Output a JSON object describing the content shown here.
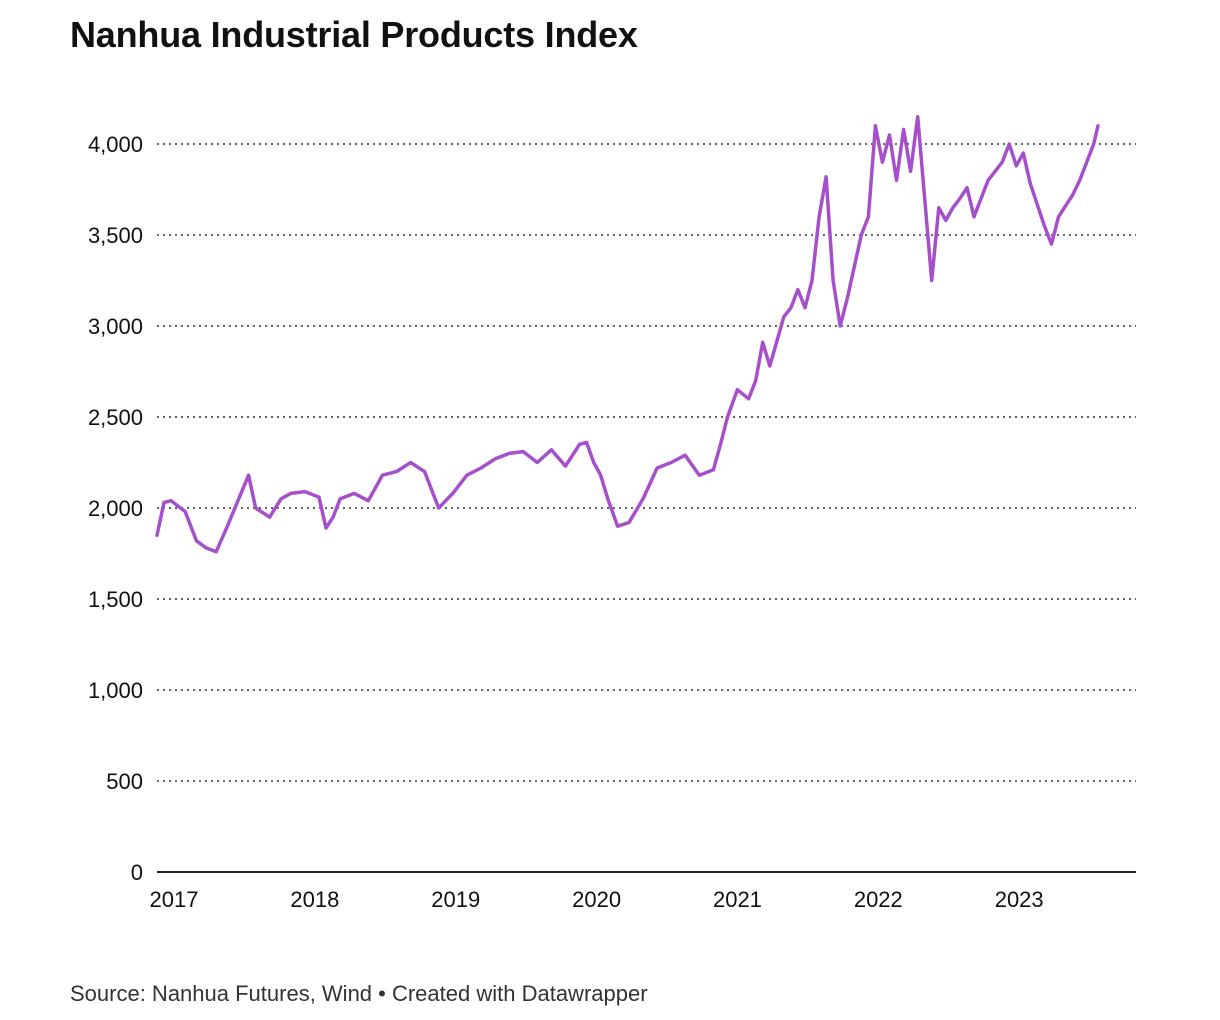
{
  "title": "Nanhua Industrial Products Index",
  "source": "Source: Nanhua Futures, Wind • Created with Datawrapper",
  "colors": {
    "line": "#a64fca",
    "grid": "#333333",
    "axis": "#222222"
  },
  "chart_data": {
    "type": "line",
    "title": "Nanhua Industrial Products Index",
    "xlabel": "",
    "ylabel": "",
    "xlim": [
      2017.0,
      2023.95
    ],
    "ylim": [
      0,
      4000
    ],
    "y_ticks": [
      0,
      500,
      1000,
      1500,
      2000,
      2500,
      3000,
      3500,
      4000
    ],
    "y_tick_labels": [
      "0",
      "500",
      "1,000",
      "1,500",
      "2,000",
      "2,500",
      "3,000",
      "3,500",
      "4,000"
    ],
    "x_ticks": [
      2017,
      2018,
      2019,
      2020,
      2021,
      2022,
      2023
    ],
    "x_tick_labels": [
      "2017",
      "2018",
      "2019",
      "2020",
      "2021",
      "2022",
      "2023"
    ],
    "grid": "horizontal dotted",
    "series": [
      {
        "x": [
          2017.0,
          2017.05,
          2017.1,
          2017.2,
          2017.28,
          2017.35,
          2017.42,
          2017.5,
          2017.58,
          2017.65,
          2017.7,
          2017.8,
          2017.88,
          2017.95,
          2018.05,
          2018.15,
          2018.2,
          2018.25,
          2018.3,
          2018.4,
          2018.5,
          2018.6,
          2018.7,
          2018.8,
          2018.9,
          2019.0,
          2019.1,
          2019.2,
          2019.3,
          2019.4,
          2019.5,
          2019.6,
          2019.7,
          2019.8,
          2019.9,
          2020.0,
          2020.05,
          2020.1,
          2020.15,
          2020.2,
          2020.27,
          2020.35,
          2020.45,
          2020.55,
          2020.65,
          2020.75,
          2020.85,
          2020.95,
          2021.0,
          2021.05,
          2021.12,
          2021.2,
          2021.25,
          2021.3,
          2021.35,
          2021.45,
          2021.5,
          2021.55,
          2021.6,
          2021.65,
          2021.7,
          2021.75,
          2021.8,
          2021.85,
          2021.9,
          2022.0,
          2022.05,
          2022.1,
          2022.15,
          2022.2,
          2022.25,
          2022.3,
          2022.35,
          2022.4,
          2022.45,
          2022.5,
          2022.55,
          2022.6,
          2022.65,
          2022.7,
          2022.75,
          2022.8,
          2022.9,
          2023.0,
          2023.05,
          2023.1,
          2023.15,
          2023.2,
          2023.3,
          2023.35,
          2023.4,
          2023.5,
          2023.55,
          2023.6,
          2023.65,
          2023.68
        ],
        "y": [
          1850,
          2030,
          2040,
          1980,
          1820,
          1780,
          1760,
          1900,
          2050,
          2180,
          2000,
          1950,
          2050,
          2080,
          2090,
          2060,
          1890,
          1950,
          2050,
          2080,
          2040,
          2180,
          2200,
          2250,
          2200,
          2000,
          2080,
          2180,
          2220,
          2270,
          2300,
          2310,
          2250,
          2320,
          2230,
          2350,
          2360,
          2250,
          2180,
          2050,
          1900,
          1920,
          2050,
          2220,
          2250,
          2290,
          2180,
          2210,
          2350,
          2500,
          2650,
          2600,
          2700,
          2910,
          2780,
          3050,
          3100,
          3200,
          3100,
          3250,
          3600,
          3820,
          3250,
          3000,
          3150,
          3500,
          3600,
          4100,
          3900,
          4050,
          3800,
          4080,
          3850,
          4150,
          3700,
          3250,
          3650,
          3580,
          3650,
          3700,
          3760,
          3600,
          3800,
          3900,
          4000,
          3880,
          3950,
          3780,
          3550,
          3450,
          3600,
          3720,
          3800,
          3900,
          4000,
          4100
        ]
      }
    ]
  }
}
